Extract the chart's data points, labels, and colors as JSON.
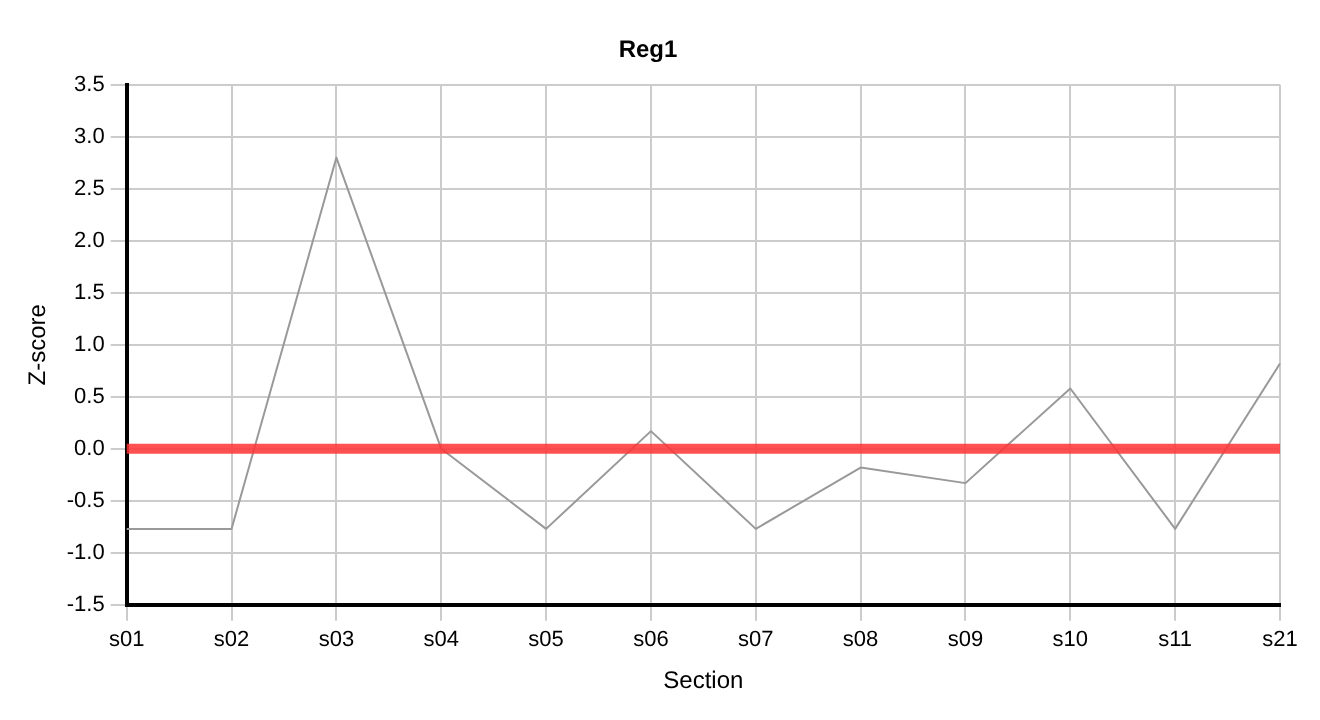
{
  "chart_data": {
    "type": "line",
    "title": "Reg1",
    "xlabel": "Section",
    "ylabel": "Z-score",
    "categories": [
      "s01",
      "s02",
      "s03",
      "s04",
      "s05",
      "s06",
      "s07",
      "s08",
      "s09",
      "s10",
      "s11",
      "s21"
    ],
    "series": [
      {
        "color": "#999999",
        "values": [
          -0.77,
          -0.77,
          2.8,
          0.0,
          -0.77,
          0.17,
          -0.77,
          -0.18,
          -0.33,
          0.58,
          -0.77,
          0.82
        ]
      }
    ],
    "ylim": [
      -1.5,
      3.5
    ],
    "yticks": [
      -1.5,
      {
        "value": -1,
        "label": "-1.0"
      },
      -0.5,
      {
        "value": 0,
        "label": "0.0"
      },
      0.5,
      {
        "value": 1,
        "label": "1.0"
      },
      1.5,
      {
        "value": 2,
        "label": "2.0"
      },
      2.5,
      {
        "value": 3,
        "label": "3.0"
      },
      3.5
    ],
    "ref_lines": [
      {
        "axis": "y",
        "value": 0,
        "color": "#ff3333"
      }
    ],
    "grid": true,
    "legend": false,
    "marker": "none",
    "line_style": "solid"
  }
}
